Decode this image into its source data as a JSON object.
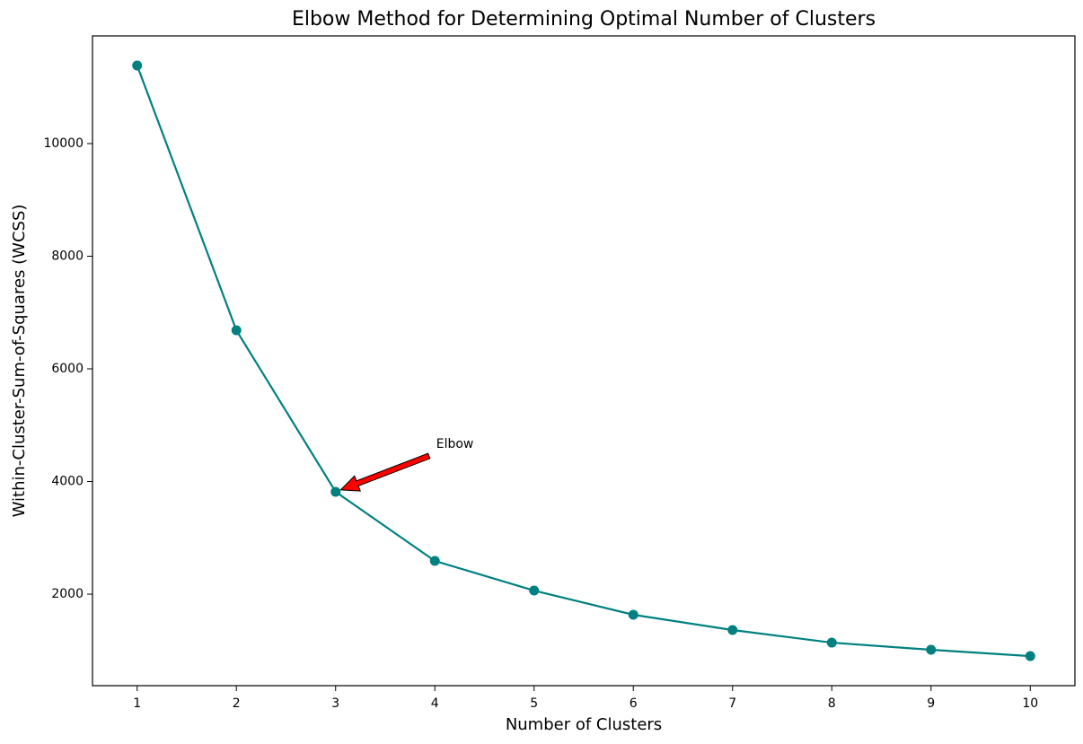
{
  "chart_data": {
    "type": "line",
    "title": "Elbow Method for Determining Optimal Number of Clusters",
    "xlabel": "Number of Clusters",
    "ylabel": "Within-Cluster-Sum-of-Squares (WCSS)",
    "x": [
      1,
      2,
      3,
      4,
      5,
      6,
      7,
      8,
      9,
      10
    ],
    "series": [
      {
        "name": "WCSS",
        "color": "#008080",
        "values": [
          11386,
          6685,
          3817,
          2590,
          2064,
          1634,
          1363,
          1139,
          1012,
          900
        ]
      }
    ],
    "xlim": [
      0.55,
      10.45
    ],
    "xticks": [
      1,
      2,
      3,
      4,
      5,
      6,
      7,
      8,
      9,
      10
    ],
    "ylim": [
      375,
      11912
    ],
    "yticks": [
      2000,
      4000,
      6000,
      8000,
      10000
    ],
    "grid": false,
    "annotation": {
      "text": "Elbow",
      "color": "#ff0000"
    }
  }
}
